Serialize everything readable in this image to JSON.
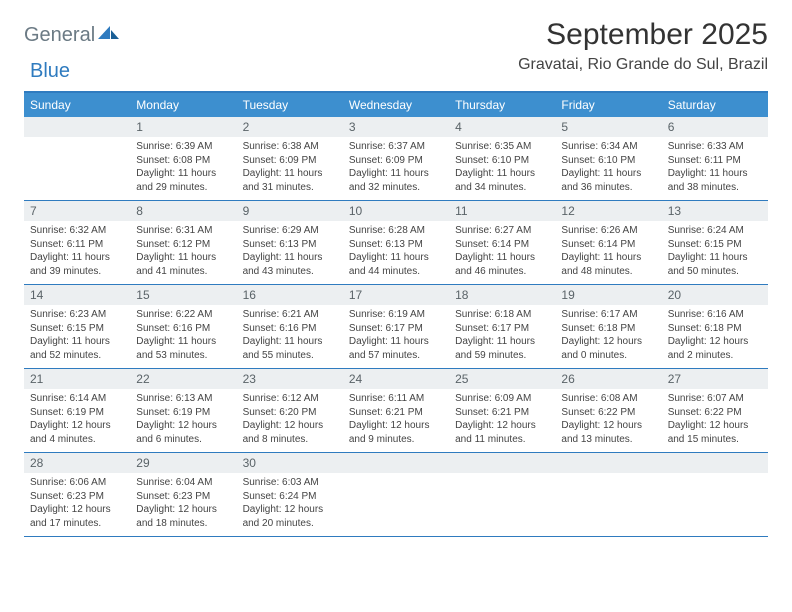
{
  "logo": {
    "word1": "General",
    "word2": "Blue"
  },
  "title": "September 2025",
  "location": "Gravatai, Rio Grande do Sul, Brazil",
  "header_bg": "#3d8fcf",
  "border_color": "#2f7bbf",
  "daynum_bg": "#eceff1",
  "weekdays": [
    "Sunday",
    "Monday",
    "Tuesday",
    "Wednesday",
    "Thursday",
    "Friday",
    "Saturday"
  ],
  "weeks": [
    [
      {
        "n": "",
        "sunrise": "",
        "sunset": "",
        "daylight1": "",
        "daylight2": ""
      },
      {
        "n": "1",
        "sunrise": "Sunrise: 6:39 AM",
        "sunset": "Sunset: 6:08 PM",
        "daylight1": "Daylight: 11 hours",
        "daylight2": "and 29 minutes."
      },
      {
        "n": "2",
        "sunrise": "Sunrise: 6:38 AM",
        "sunset": "Sunset: 6:09 PM",
        "daylight1": "Daylight: 11 hours",
        "daylight2": "and 31 minutes."
      },
      {
        "n": "3",
        "sunrise": "Sunrise: 6:37 AM",
        "sunset": "Sunset: 6:09 PM",
        "daylight1": "Daylight: 11 hours",
        "daylight2": "and 32 minutes."
      },
      {
        "n": "4",
        "sunrise": "Sunrise: 6:35 AM",
        "sunset": "Sunset: 6:10 PM",
        "daylight1": "Daylight: 11 hours",
        "daylight2": "and 34 minutes."
      },
      {
        "n": "5",
        "sunrise": "Sunrise: 6:34 AM",
        "sunset": "Sunset: 6:10 PM",
        "daylight1": "Daylight: 11 hours",
        "daylight2": "and 36 minutes."
      },
      {
        "n": "6",
        "sunrise": "Sunrise: 6:33 AM",
        "sunset": "Sunset: 6:11 PM",
        "daylight1": "Daylight: 11 hours",
        "daylight2": "and 38 minutes."
      }
    ],
    [
      {
        "n": "7",
        "sunrise": "Sunrise: 6:32 AM",
        "sunset": "Sunset: 6:11 PM",
        "daylight1": "Daylight: 11 hours",
        "daylight2": "and 39 minutes."
      },
      {
        "n": "8",
        "sunrise": "Sunrise: 6:31 AM",
        "sunset": "Sunset: 6:12 PM",
        "daylight1": "Daylight: 11 hours",
        "daylight2": "and 41 minutes."
      },
      {
        "n": "9",
        "sunrise": "Sunrise: 6:29 AM",
        "sunset": "Sunset: 6:13 PM",
        "daylight1": "Daylight: 11 hours",
        "daylight2": "and 43 minutes."
      },
      {
        "n": "10",
        "sunrise": "Sunrise: 6:28 AM",
        "sunset": "Sunset: 6:13 PM",
        "daylight1": "Daylight: 11 hours",
        "daylight2": "and 44 minutes."
      },
      {
        "n": "11",
        "sunrise": "Sunrise: 6:27 AM",
        "sunset": "Sunset: 6:14 PM",
        "daylight1": "Daylight: 11 hours",
        "daylight2": "and 46 minutes."
      },
      {
        "n": "12",
        "sunrise": "Sunrise: 6:26 AM",
        "sunset": "Sunset: 6:14 PM",
        "daylight1": "Daylight: 11 hours",
        "daylight2": "and 48 minutes."
      },
      {
        "n": "13",
        "sunrise": "Sunrise: 6:24 AM",
        "sunset": "Sunset: 6:15 PM",
        "daylight1": "Daylight: 11 hours",
        "daylight2": "and 50 minutes."
      }
    ],
    [
      {
        "n": "14",
        "sunrise": "Sunrise: 6:23 AM",
        "sunset": "Sunset: 6:15 PM",
        "daylight1": "Daylight: 11 hours",
        "daylight2": "and 52 minutes."
      },
      {
        "n": "15",
        "sunrise": "Sunrise: 6:22 AM",
        "sunset": "Sunset: 6:16 PM",
        "daylight1": "Daylight: 11 hours",
        "daylight2": "and 53 minutes."
      },
      {
        "n": "16",
        "sunrise": "Sunrise: 6:21 AM",
        "sunset": "Sunset: 6:16 PM",
        "daylight1": "Daylight: 11 hours",
        "daylight2": "and 55 minutes."
      },
      {
        "n": "17",
        "sunrise": "Sunrise: 6:19 AM",
        "sunset": "Sunset: 6:17 PM",
        "daylight1": "Daylight: 11 hours",
        "daylight2": "and 57 minutes."
      },
      {
        "n": "18",
        "sunrise": "Sunrise: 6:18 AM",
        "sunset": "Sunset: 6:17 PM",
        "daylight1": "Daylight: 11 hours",
        "daylight2": "and 59 minutes."
      },
      {
        "n": "19",
        "sunrise": "Sunrise: 6:17 AM",
        "sunset": "Sunset: 6:18 PM",
        "daylight1": "Daylight: 12 hours",
        "daylight2": "and 0 minutes."
      },
      {
        "n": "20",
        "sunrise": "Sunrise: 6:16 AM",
        "sunset": "Sunset: 6:18 PM",
        "daylight1": "Daylight: 12 hours",
        "daylight2": "and 2 minutes."
      }
    ],
    [
      {
        "n": "21",
        "sunrise": "Sunrise: 6:14 AM",
        "sunset": "Sunset: 6:19 PM",
        "daylight1": "Daylight: 12 hours",
        "daylight2": "and 4 minutes."
      },
      {
        "n": "22",
        "sunrise": "Sunrise: 6:13 AM",
        "sunset": "Sunset: 6:19 PM",
        "daylight1": "Daylight: 12 hours",
        "daylight2": "and 6 minutes."
      },
      {
        "n": "23",
        "sunrise": "Sunrise: 6:12 AM",
        "sunset": "Sunset: 6:20 PM",
        "daylight1": "Daylight: 12 hours",
        "daylight2": "and 8 minutes."
      },
      {
        "n": "24",
        "sunrise": "Sunrise: 6:11 AM",
        "sunset": "Sunset: 6:21 PM",
        "daylight1": "Daylight: 12 hours",
        "daylight2": "and 9 minutes."
      },
      {
        "n": "25",
        "sunrise": "Sunrise: 6:09 AM",
        "sunset": "Sunset: 6:21 PM",
        "daylight1": "Daylight: 12 hours",
        "daylight2": "and 11 minutes."
      },
      {
        "n": "26",
        "sunrise": "Sunrise: 6:08 AM",
        "sunset": "Sunset: 6:22 PM",
        "daylight1": "Daylight: 12 hours",
        "daylight2": "and 13 minutes."
      },
      {
        "n": "27",
        "sunrise": "Sunrise: 6:07 AM",
        "sunset": "Sunset: 6:22 PM",
        "daylight1": "Daylight: 12 hours",
        "daylight2": "and 15 minutes."
      }
    ],
    [
      {
        "n": "28",
        "sunrise": "Sunrise: 6:06 AM",
        "sunset": "Sunset: 6:23 PM",
        "daylight1": "Daylight: 12 hours",
        "daylight2": "and 17 minutes."
      },
      {
        "n": "29",
        "sunrise": "Sunrise: 6:04 AM",
        "sunset": "Sunset: 6:23 PM",
        "daylight1": "Daylight: 12 hours",
        "daylight2": "and 18 minutes."
      },
      {
        "n": "30",
        "sunrise": "Sunrise: 6:03 AM",
        "sunset": "Sunset: 6:24 PM",
        "daylight1": "Daylight: 12 hours",
        "daylight2": "and 20 minutes."
      },
      {
        "n": "",
        "sunrise": "",
        "sunset": "",
        "daylight1": "",
        "daylight2": ""
      },
      {
        "n": "",
        "sunrise": "",
        "sunset": "",
        "daylight1": "",
        "daylight2": ""
      },
      {
        "n": "",
        "sunrise": "",
        "sunset": "",
        "daylight1": "",
        "daylight2": ""
      },
      {
        "n": "",
        "sunrise": "",
        "sunset": "",
        "daylight1": "",
        "daylight2": ""
      }
    ]
  ]
}
